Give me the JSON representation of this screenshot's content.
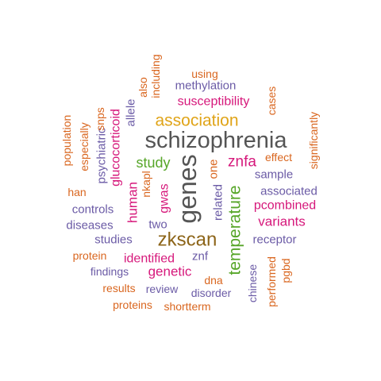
{
  "colors": {
    "dark_gray": "#555555",
    "orange": "#D9661F",
    "purple": "#6B5BA6",
    "magenta": "#D6187B",
    "gold": "#E0A418",
    "green": "#57A629",
    "brown": "#8C6418"
  },
  "words": [
    {
      "id": "schizophrenia",
      "text": "schizophrenia",
      "color": "dark_gray",
      "rotated": false
    },
    {
      "id": "genes",
      "text": "genes",
      "color": "dark_gray",
      "rotated": true
    },
    {
      "id": "zkscan",
      "text": "zkscan",
      "color": "brown",
      "rotated": false
    },
    {
      "id": "association",
      "text": "association",
      "color": "gold",
      "rotated": false
    },
    {
      "id": "temperature",
      "text": "temperature",
      "color": "green",
      "rotated": true
    },
    {
      "id": "susceptibility",
      "text": "susceptibility",
      "color": "magenta",
      "rotated": false
    },
    {
      "id": "znfa",
      "text": "znfa",
      "color": "magenta",
      "rotated": false
    },
    {
      "id": "study",
      "text": "study",
      "color": "green",
      "rotated": false
    },
    {
      "id": "variants",
      "text": "variants",
      "color": "magenta",
      "rotated": false
    },
    {
      "id": "pcombined",
      "text": "pcombined",
      "color": "magenta",
      "rotated": false
    },
    {
      "id": "identified",
      "text": "identified",
      "color": "magenta",
      "rotated": false
    },
    {
      "id": "genetic",
      "text": "genetic",
      "color": "magenta",
      "rotated": false
    },
    {
      "id": "gwas",
      "text": "gwas",
      "color": "magenta",
      "rotated": true
    },
    {
      "id": "human",
      "text": "human",
      "color": "magenta",
      "rotated": true
    },
    {
      "id": "glucocorticoid",
      "text": "glucocorticoid",
      "color": "magenta",
      "rotated": true
    },
    {
      "id": "methylation",
      "text": "methylation",
      "color": "purple",
      "rotated": false
    },
    {
      "id": "associated",
      "text": "associated",
      "color": "purple",
      "rotated": false
    },
    {
      "id": "sample",
      "text": "sample",
      "color": "purple",
      "rotated": false
    },
    {
      "id": "receptor",
      "text": "receptor",
      "color": "purple",
      "rotated": false
    },
    {
      "id": "controls",
      "text": "controls",
      "color": "purple",
      "rotated": false
    },
    {
      "id": "diseases",
      "text": "diseases",
      "color": "purple",
      "rotated": false
    },
    {
      "id": "studies",
      "text": "studies",
      "color": "purple",
      "rotated": false
    },
    {
      "id": "two",
      "text": "two",
      "color": "purple",
      "rotated": false
    },
    {
      "id": "findings",
      "text": "findings",
      "color": "purple",
      "rotated": false
    },
    {
      "id": "review",
      "text": "review",
      "color": "purple",
      "rotated": false
    },
    {
      "id": "disorder",
      "text": "disorder",
      "color": "purple",
      "rotated": false
    },
    {
      "id": "znf",
      "text": "znf",
      "color": "purple",
      "rotated": false
    },
    {
      "id": "psychiatric",
      "text": "psychiatric",
      "color": "purple",
      "rotated": true
    },
    {
      "id": "allele",
      "text": "allele",
      "color": "purple",
      "rotated": true
    },
    {
      "id": "related",
      "text": "related",
      "color": "purple",
      "rotated": true
    },
    {
      "id": "chinese",
      "text": "chinese",
      "color": "purple",
      "rotated": true
    },
    {
      "id": "using",
      "text": "using",
      "color": "orange",
      "rotated": false
    },
    {
      "id": "effect",
      "text": "effect",
      "color": "orange",
      "rotated": false
    },
    {
      "id": "han",
      "text": "han",
      "color": "orange",
      "rotated": false
    },
    {
      "id": "protein",
      "text": "protein",
      "color": "orange",
      "rotated": false
    },
    {
      "id": "results",
      "text": "results",
      "color": "orange",
      "rotated": false
    },
    {
      "id": "proteins",
      "text": "proteins",
      "color": "orange",
      "rotated": false
    },
    {
      "id": "shortterm",
      "text": "shortterm",
      "color": "orange",
      "rotated": false
    },
    {
      "id": "dna",
      "text": "dna",
      "color": "orange",
      "rotated": false
    },
    {
      "id": "nkapl",
      "text": "nkapl",
      "color": "orange",
      "rotated": true
    },
    {
      "id": "one",
      "text": "one",
      "color": "orange",
      "rotated": true
    },
    {
      "id": "population",
      "text": "population",
      "color": "orange",
      "rotated": true
    },
    {
      "id": "especially",
      "text": "especially",
      "color": "orange",
      "rotated": true
    },
    {
      "id": "snps",
      "text": "snps",
      "color": "orange",
      "rotated": true
    },
    {
      "id": "also",
      "text": "also",
      "color": "orange",
      "rotated": true
    },
    {
      "id": "including",
      "text": "including",
      "color": "orange",
      "rotated": true
    },
    {
      "id": "cases",
      "text": "cases",
      "color": "orange",
      "rotated": true
    },
    {
      "id": "significantly",
      "text": "significantly",
      "color": "orange",
      "rotated": true
    },
    {
      "id": "performed",
      "text": "performed",
      "color": "orange",
      "rotated": true
    },
    {
      "id": "pgbd",
      "text": "pgbd",
      "color": "orange",
      "rotated": true
    }
  ]
}
